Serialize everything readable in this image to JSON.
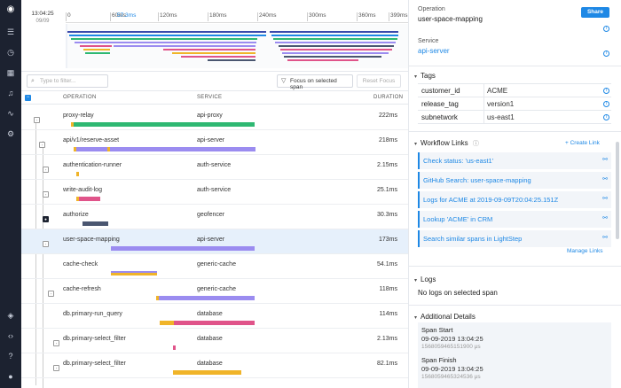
{
  "nav": {
    "icons": [
      "logo-icon",
      "list-icon",
      "clock-icon",
      "grid-icon",
      "bell-icon",
      "pulse-icon",
      "gear-icon",
      "cube-icon",
      "code-icon",
      "help-icon",
      "user-icon"
    ]
  },
  "timeline": {
    "start_time": "13:04:25",
    "start_date": "09/09",
    "ticks": [
      "0",
      "60ms",
      "120ms",
      "180ms",
      "240ms",
      "300ms",
      "360ms",
      "399ms"
    ],
    "selection_label": "57.3ms"
  },
  "toolbar": {
    "filter_placeholder": "Type to filter...",
    "focus_label": "Focus on selected span",
    "reset_label": "Reset Focus"
  },
  "table": {
    "headers": {
      "operation": "OPERATION",
      "service": "SERVICE",
      "duration": "DURATION"
    },
    "rows": [
      {
        "operation": "proxy-relay",
        "service": "api-proxy",
        "duration": "222ms",
        "color": "#2eb872"
      },
      {
        "operation": "api/v1/reserve-asset",
        "service": "api-server",
        "duration": "218ms",
        "color": "#9b8cf0"
      },
      {
        "operation": "authentication-runner",
        "service": "auth-service",
        "duration": "2.15ms",
        "color": "#f0b429"
      },
      {
        "operation": "write-audit-log",
        "service": "auth-service",
        "duration": "25.1ms",
        "color": "#e0548a"
      },
      {
        "operation": "authorize",
        "service": "geofencer",
        "duration": "30.3ms",
        "color": "#4a5670"
      },
      {
        "operation": "user-space-mapping",
        "service": "api-server",
        "duration": "173ms",
        "color": "#9b8cf0"
      },
      {
        "operation": "cache-check",
        "service": "generic-cache",
        "duration": "54.1ms",
        "color": "#f0b429"
      },
      {
        "operation": "cache-refresh",
        "service": "generic-cache",
        "duration": "118ms",
        "color": "#9b8cf0"
      },
      {
        "operation": "db.primary-run_query",
        "service": "database",
        "duration": "114ms",
        "color": "#e0548a"
      },
      {
        "operation": "db.primary-select_filter",
        "service": "database",
        "duration": "2.13ms",
        "color": "#e0548a"
      },
      {
        "operation": "db.primary-select_filter",
        "service": "database",
        "duration": "82.1ms",
        "color": "#f0b429"
      }
    ]
  },
  "detail": {
    "operation_label": "Operation",
    "operation_value": "user-space-mapping",
    "share_label": "Share",
    "service_label": "Service",
    "service_value": "api-server",
    "tags_title": "Tags",
    "tags": [
      {
        "key": "customer_id",
        "value": "ACME"
      },
      {
        "key": "release_tag",
        "value": "version1"
      },
      {
        "key": "subnetwork",
        "value": "us-east1"
      }
    ],
    "workflow_title": "Workflow Links",
    "create_link": "+ Create Link",
    "workflow_links": [
      "Check status: 'us-east1'",
      "GitHub Search: user-space-mapping",
      "Logs for ACME at 2019-09-09T20:04:25.151Z",
      "Lookup 'ACME' in CRM",
      "Search similar spans in LightStep"
    ],
    "manage_links": "Manage Links",
    "logs_title": "Logs",
    "logs_empty": "No logs on selected span",
    "additional_title": "Additional Details",
    "span_start_label": "Span Start",
    "span_start_value": "09-09-2019 13:04:25",
    "span_start_micro": "1568059465151900 μs",
    "span_finish_label": "Span Finish",
    "span_finish_value": "09-09-2019 13:04:25",
    "span_finish_micro": "1568059465324536 μs"
  },
  "colors": {
    "accent": "#1e88e5",
    "nav_bg": "#1c2230",
    "selected_row": "#e6f0fb"
  }
}
